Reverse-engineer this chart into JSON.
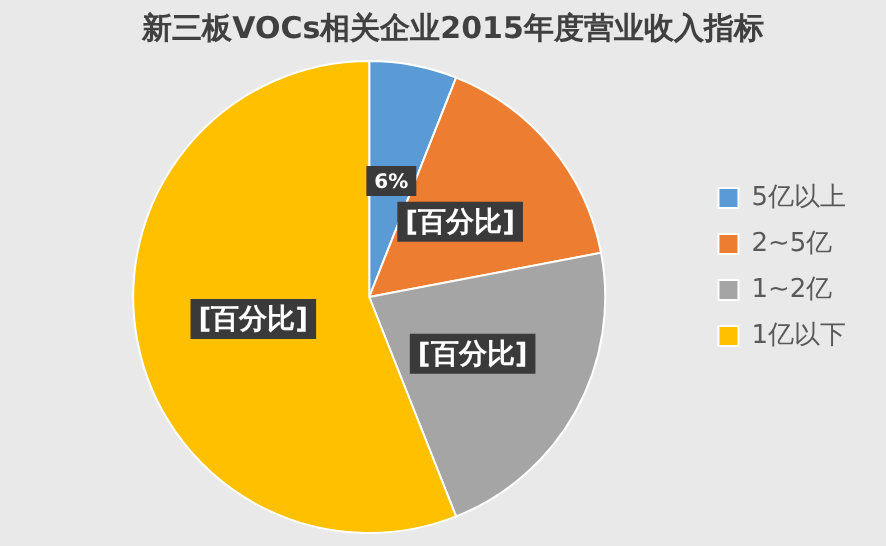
{
  "chart_data": {
    "type": "pie",
    "title": "新三板VOCs相关企业2015年度营业收入指标",
    "categories": [
      "5亿以上",
      "2~5亿",
      "1~2亿",
      "1亿以下"
    ],
    "values": [
      6,
      16,
      22,
      56
    ],
    "colors": [
      "#5b9bd5",
      "#ed7d31",
      "#a5a5a5",
      "#ffc000"
    ],
    "value_labels": [
      "6%",
      "[百分比]",
      "[百分比]",
      "[百分比]"
    ],
    "legend": "right"
  }
}
